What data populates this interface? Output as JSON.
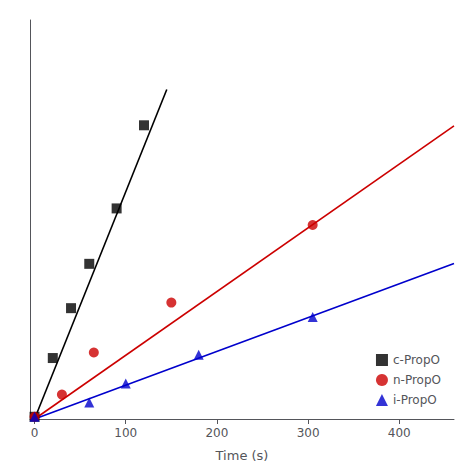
{
  "chart_data": {
    "type": "scatter",
    "xlabel": "Time (s)",
    "xlim": [
      -5,
      460
    ],
    "xticks": [
      0,
      100,
      200,
      300,
      400
    ],
    "ylim": [
      0,
      3.6
    ],
    "yticks": [],
    "tick_labels": "x",
    "grid": false,
    "legend": "lower right",
    "series": [
      {
        "name": "c-PropO",
        "color": "#000000",
        "marker": "square",
        "x": [
          0,
          20,
          40,
          60,
          90,
          120
        ],
        "values": [
          0.02,
          0.55,
          1.0,
          1.4,
          1.9,
          2.65
        ],
        "fit_x": [
          0,
          145
        ],
        "fit_y": [
          0,
          2.9725
        ]
      },
      {
        "name": "n-PropO",
        "color": "#cc0000",
        "marker": "circle",
        "x": [
          0,
          30,
          65,
          150,
          305
        ],
        "values": [
          0.02,
          0.22,
          0.6,
          1.05,
          1.75
        ],
        "fit_x": [
          0,
          460
        ],
        "fit_y": [
          0,
          2.645
        ]
      },
      {
        "name": "i-PropO",
        "color": "#0000cc",
        "marker": "triangle",
        "x": [
          0,
          60,
          100,
          180,
          305
        ],
        "values": [
          0.02,
          0.15,
          0.32,
          0.58,
          0.92
        ],
        "fit_x": [
          0,
          460
        ],
        "fit_y": [
          0,
          1.403
        ]
      }
    ]
  }
}
